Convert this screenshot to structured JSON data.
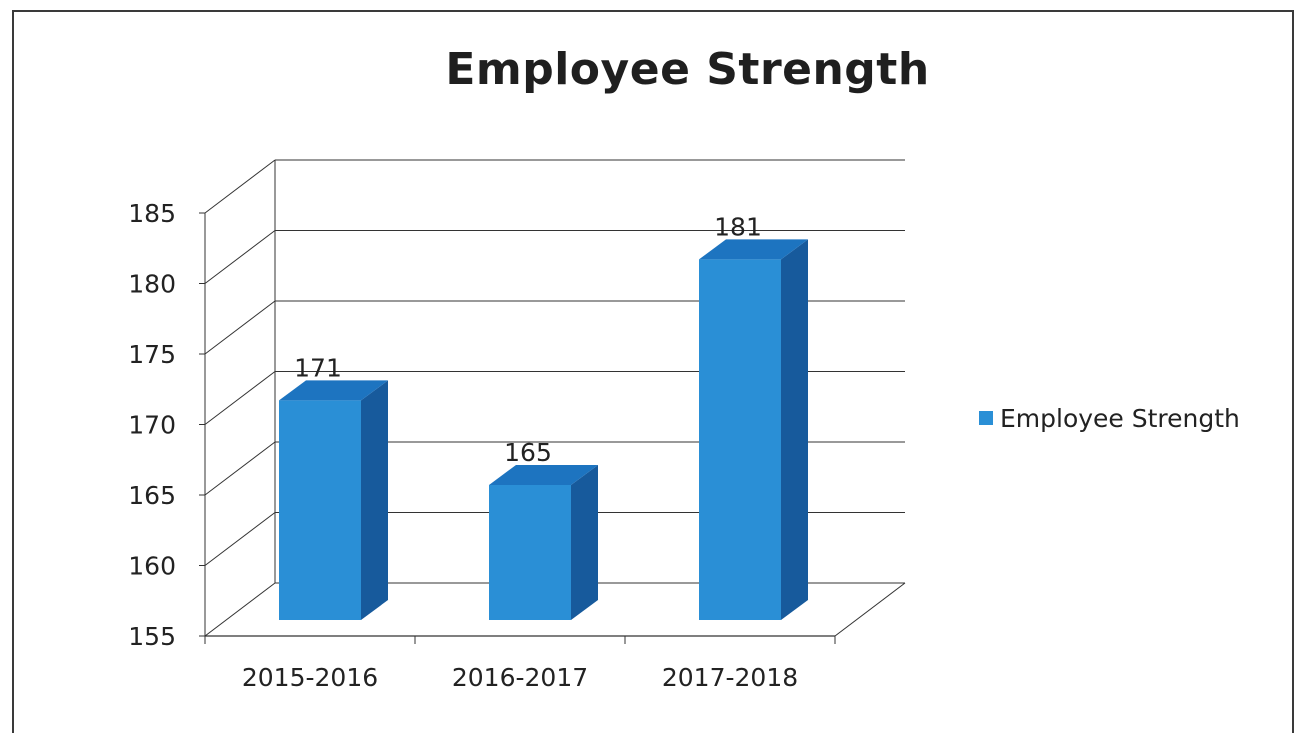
{
  "chart_data": {
    "type": "bar",
    "title": "Employee Strength",
    "categories": [
      "2015-2016",
      "2016-2017",
      "2017-2018"
    ],
    "series": [
      {
        "name": "Employee Strength",
        "values": [
          171,
          165,
          181
        ]
      }
    ],
    "data_labels": [
      "171",
      "165",
      "181"
    ],
    "xlabel": "",
    "ylabel": "",
    "ylim": [
      155,
      185
    ],
    "yticks": [
      155,
      160,
      165,
      170,
      175,
      180,
      185
    ],
    "grid": true,
    "legend_position": "right",
    "three_d": true,
    "colors": {
      "bar_front": "#2a8fd6",
      "bar_side": "#175a9c",
      "bar_top": "#1d74c0",
      "grid": "#333333",
      "text": "#222222"
    }
  }
}
